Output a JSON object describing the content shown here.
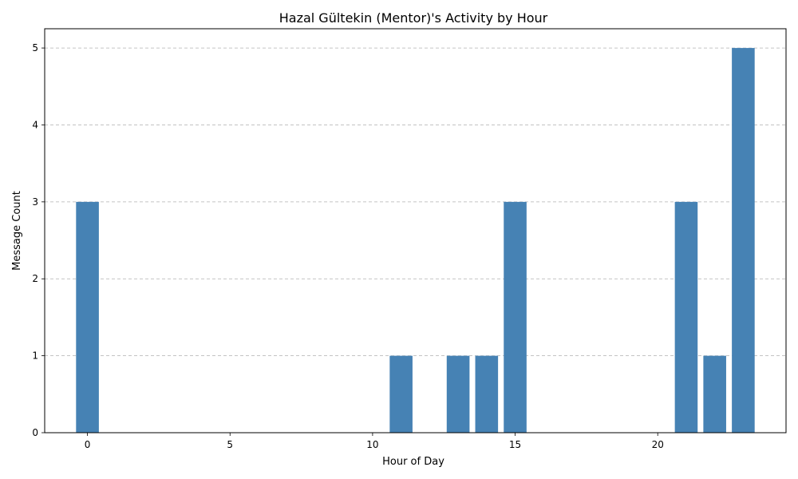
{
  "chart_data": {
    "type": "bar",
    "title": "Hazal Gültekin (Mentor)'s Activity by Hour",
    "xlabel": "Hour of Day",
    "ylabel": "Message Count",
    "x": [
      0,
      11,
      13,
      14,
      15,
      21,
      22,
      23
    ],
    "values": [
      3,
      1,
      1,
      1,
      3,
      3,
      1,
      5
    ],
    "xlim": [
      -1.5,
      24.5
    ],
    "ylim": [
      0,
      5.25
    ],
    "xticks": [
      0,
      5,
      10,
      15,
      20
    ],
    "yticks": [
      0,
      1,
      2,
      3,
      4,
      5
    ],
    "grid": "y-dashed",
    "bar_color": "#4682b4"
  }
}
